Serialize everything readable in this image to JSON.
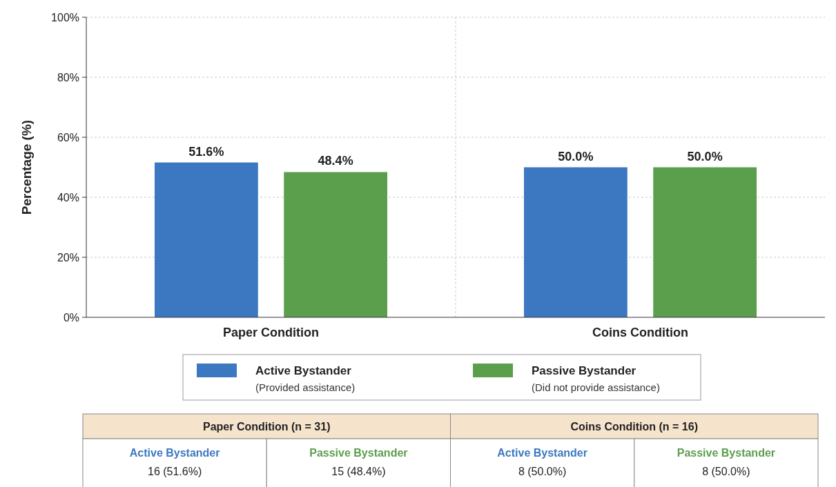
{
  "chart_data": {
    "type": "bar",
    "ylabel": "Percentage (%)",
    "categories": [
      "Paper Condition",
      "Coins Condition"
    ],
    "series": [
      {
        "name": "Active Bystander\n(Provided assistance)",
        "color": "#3b78c1",
        "values": [
          51.6,
          50.0
        ],
        "value_labels": [
          "51.6%",
          "50.0%"
        ]
      },
      {
        "name": "Passive Bystander\n(Did not provide assistance)",
        "color": "#5b9e4b",
        "values": [
          48.4,
          50.0
        ],
        "value_labels": [
          "48.4%",
          "50.0%"
        ]
      }
    ],
    "ylim": [
      0,
      100
    ],
    "yticks": [
      {
        "value": 0,
        "label": "0%"
      },
      {
        "value": 20,
        "label": "20%"
      },
      {
        "value": 40,
        "label": "40%"
      },
      {
        "value": 60,
        "label": "60%"
      },
      {
        "value": 80,
        "label": "80%"
      },
      {
        "value": 100,
        "label": "100%"
      }
    ],
    "grid": true,
    "legend": "bottom",
    "annotations": [
      "Paper Condition (n = 31)",
      "Coins Condition (n = 16)",
      "Active Bystander",
      "16 (51.6%)",
      "Passive Bystander",
      "15 (48.4%)",
      "Active Bystander",
      "8 (50.0%)",
      "Passive Bystander",
      "8 (50.0%)"
    ]
  }
}
